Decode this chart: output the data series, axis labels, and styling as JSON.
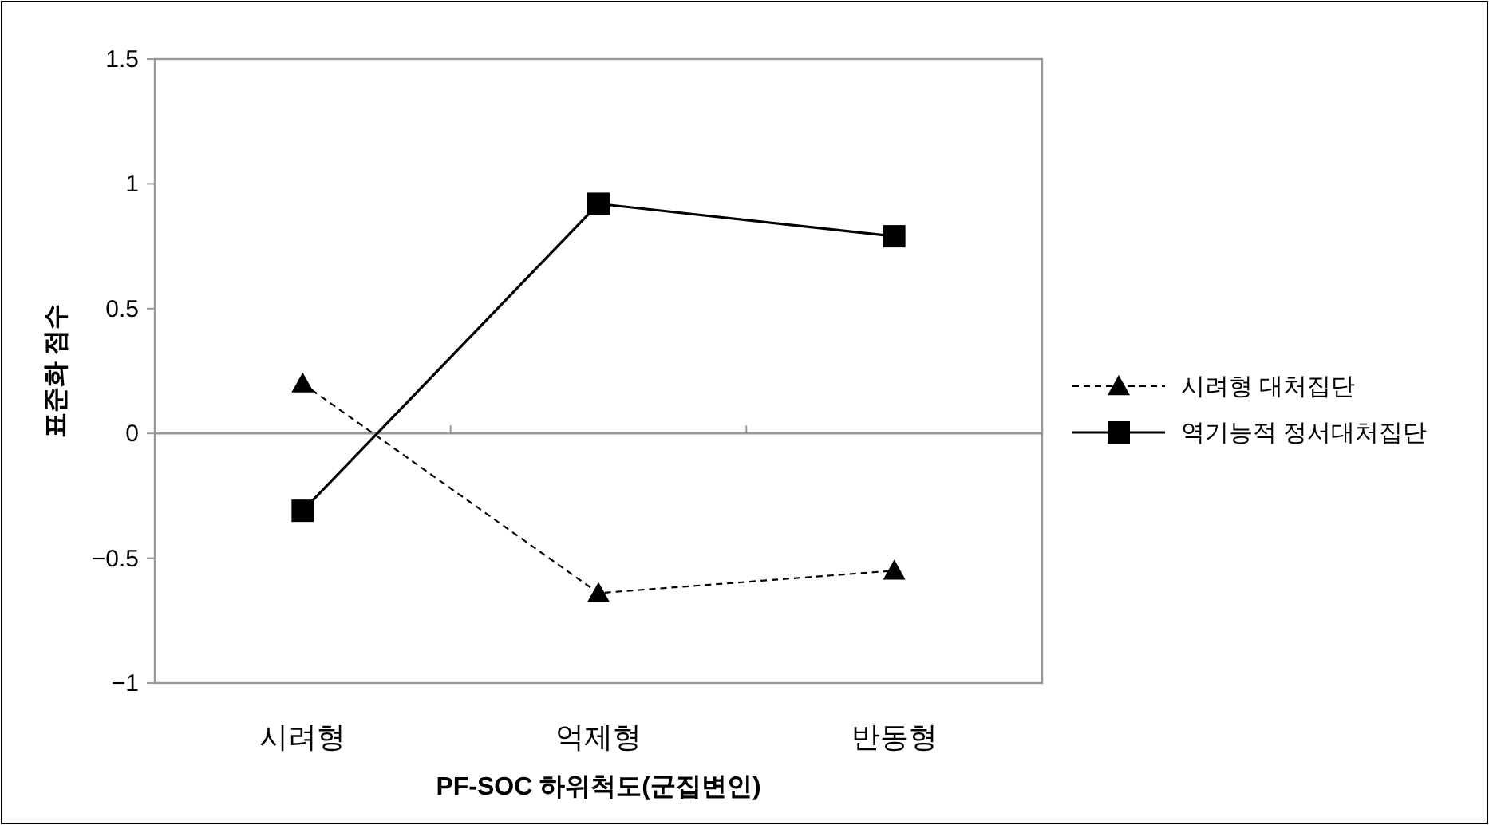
{
  "chart_data": {
    "type": "line",
    "xlabel": "PF-SOC 하위척도(군집변인)",
    "ylabel": "표준화 점수",
    "categories": [
      "시려형",
      "억제형",
      "반동형"
    ],
    "series": [
      {
        "name": "시려형 대처집단",
        "color": "#000000",
        "values": [
          0.2,
          -0.64,
          -0.55
        ],
        "marker": "triangle",
        "line_style": "dashed"
      },
      {
        "name": "역기능적 정서대처집단",
        "color": "#000000",
        "values": [
          -0.31,
          0.92,
          0.79
        ],
        "marker": "square",
        "line_style": "solid"
      }
    ],
    "ylim": [
      -1,
      1.5
    ],
    "yticks": [
      {
        "value": -1,
        "label": "−1"
      },
      {
        "value": -0.5,
        "label": "−0.5"
      },
      0,
      0.5,
      1,
      1.5
    ],
    "legend": "right"
  }
}
